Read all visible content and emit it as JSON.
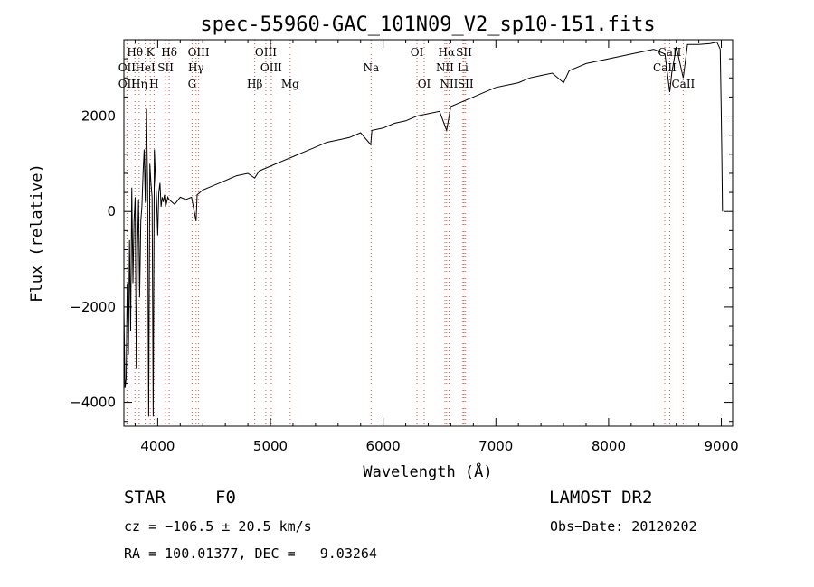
{
  "chart_data": {
    "type": "line",
    "title": "spec-55960-GAC_101N09_V2_sp10-151.fits",
    "xlabel": "Wavelength (Å)",
    "ylabel": "Flux (relative)",
    "xlim": [
      3700,
      9100
    ],
    "ylim": [
      -4500,
      3600
    ],
    "x_ticks": [
      {
        "value": 4000,
        "label": "4000"
      },
      {
        "value": 5000,
        "label": "5000"
      },
      {
        "value": 6000,
        "label": "6000"
      },
      {
        "value": 7000,
        "label": "7000"
      },
      {
        "value": 8000,
        "label": "8000"
      },
      {
        "value": 9000,
        "label": "9000"
      }
    ],
    "y_ticks": [
      {
        "value": 2000,
        "label": "2000"
      },
      {
        "value": 0,
        "label": "0"
      },
      {
        "value": -2000,
        "label": "−2000"
      },
      {
        "value": -4000,
        "label": "−4000"
      }
    ],
    "grid": false,
    "series": [
      {
        "color": "#000000",
        "x": [
          3700,
          3710,
          3720,
          3730,
          3740,
          3750,
          3760,
          3770,
          3780,
          3790,
          3800,
          3810,
          3820,
          3830,
          3840,
          3850,
          3860,
          3870,
          3880,
          3890,
          3900,
          3910,
          3920,
          3930,
          3940,
          3950,
          3960,
          3970,
          3980,
          3990,
          4000,
          4010,
          4020,
          4030,
          4040,
          4050,
          4060,
          4070,
          4080,
          4090,
          4100,
          4150,
          4200,
          4250,
          4300,
          4340,
          4350,
          4400,
          4500,
          4600,
          4700,
          4800,
          4860,
          4900,
          5000,
          5100,
          5200,
          5300,
          5400,
          5500,
          5600,
          5700,
          5800,
          5890,
          5900,
          6000,
          6100,
          6200,
          6300,
          6400,
          6500,
          6563,
          6600,
          6700,
          6800,
          6900,
          7000,
          7100,
          7200,
          7300,
          7400,
          7500,
          7600,
          7650,
          7700,
          7800,
          7900,
          8000,
          8100,
          8200,
          8300,
          8400,
          8500,
          8542,
          8560,
          8600,
          8662,
          8700,
          8800,
          8900,
          8960,
          8990,
          9000,
          9005,
          9010
        ],
        "y": [
          -2000,
          -3700,
          -3500,
          -1500,
          -3000,
          -600,
          -2500,
          500,
          -1500,
          -200,
          300,
          -3300,
          -800,
          250,
          -1800,
          -200,
          100,
          800,
          1300,
          200,
          2150,
          600,
          -4300,
          1000,
          600,
          300,
          -4300,
          1300,
          700,
          300,
          -500,
          400,
          600,
          100,
          300,
          200,
          350,
          100,
          200,
          300,
          250,
          150,
          300,
          250,
          300,
          -200,
          350,
          450,
          550,
          650,
          750,
          800,
          700,
          850,
          950,
          1050,
          1150,
          1250,
          1350,
          1450,
          1500,
          1550,
          1650,
          1400,
          1700,
          1750,
          1850,
          1900,
          2000,
          2050,
          2100,
          1700,
          2200,
          2300,
          2400,
          2500,
          2600,
          2650,
          2700,
          2800,
          2850,
          2900,
          2700,
          2950,
          3000,
          3100,
          3150,
          3200,
          3250,
          3300,
          3350,
          3400,
          3300,
          2500,
          2900,
          3450,
          2800,
          3500,
          3500,
          3520,
          3550,
          3400,
          2000,
          1000,
          0
        ]
      }
    ],
    "annotations": [
      {
        "label": "Hθ",
        "x": 3798,
        "row": 1
      },
      {
        "label": "K",
        "x": 3934,
        "row": 1
      },
      {
        "label": "Hδ",
        "x": 4102,
        "row": 1
      },
      {
        "label": "OIII",
        "x": 4363,
        "row": 1
      },
      {
        "label": "OIII",
        "x": 4959,
        "row": 1
      },
      {
        "label": "OI",
        "x": 6300,
        "row": 1
      },
      {
        "label": "Hα",
        "x": 6563,
        "row": 1
      },
      {
        "label": "SII",
        "x": 6717,
        "row": 1
      },
      {
        "label": "CaII",
        "x": 8542,
        "row": 1
      },
      {
        "label": "OII",
        "x": 3727,
        "row": 2
      },
      {
        "label": "HeI",
        "x": 3889,
        "row": 2
      },
      {
        "label": "SII",
        "x": 4070,
        "row": 2
      },
      {
        "label": "Hγ",
        "x": 4340,
        "row": 2
      },
      {
        "label": "OIII",
        "x": 5007,
        "row": 2
      },
      {
        "label": "Na",
        "x": 5893,
        "row": 2
      },
      {
        "label": "NII",
        "x": 6548,
        "row": 2
      },
      {
        "label": "Li",
        "x": 6708,
        "row": 2
      },
      {
        "label": "CaII",
        "x": 8498,
        "row": 2
      },
      {
        "label": "OII",
        "x": 3727,
        "row": 3
      },
      {
        "label": "Hη",
        "x": 3835,
        "row": 3
      },
      {
        "label": "H",
        "x": 3968,
        "row": 3
      },
      {
        "label": "G",
        "x": 4305,
        "row": 3
      },
      {
        "label": "Hβ",
        "x": 4861,
        "row": 3
      },
      {
        "label": "Mg",
        "x": 5175,
        "row": 3
      },
      {
        "label": "OI",
        "x": 6364,
        "row": 3
      },
      {
        "label": "NII",
        "x": 6584,
        "row": 3
      },
      {
        "label": "SII",
        "x": 6731,
        "row": 3
      },
      {
        "label": "CaII",
        "x": 8662,
        "row": 3
      }
    ],
    "line_markers": [
      3727,
      3798,
      3835,
      3889,
      3934,
      3968,
      4070,
      4102,
      4305,
      4340,
      4363,
      4861,
      4959,
      5007,
      5175,
      5893,
      6300,
      6364,
      6548,
      6563,
      6584,
      6708,
      6717,
      6731,
      8498,
      8542,
      8662
    ],
    "marker_color": "#e05050"
  },
  "info": {
    "class_label": "STAR",
    "subclass": "F0",
    "survey": "LAMOST DR2",
    "cz": "cz = −106.5 ± 20.5 km/s",
    "obs_date": "Obs−Date: 20120202",
    "coords": "RA = 100.01377, DEC =   9.03264"
  }
}
